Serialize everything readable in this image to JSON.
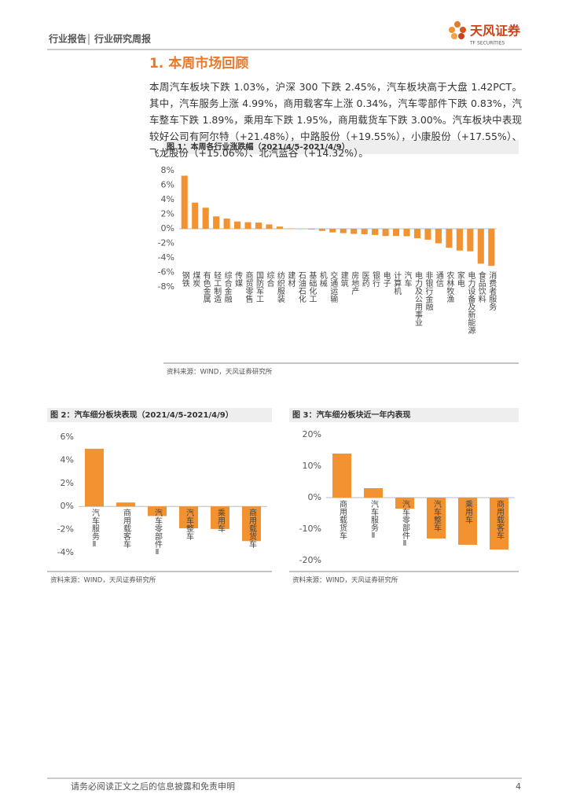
{
  "header": {
    "report_type": "行业报告",
    "report_series": "行业研究周报",
    "brand": "天风证券",
    "brand_en": "TF SECURITIES"
  },
  "section_title": "1. 本周市场回顾",
  "paragraph": "本周汽车板块下跌 1.03%，沪深 300 下跌 2.45%，汽车板块高于大盘 1.42PCT。其中，汽车服务上涨 4.99%，商用载客车上涨 0.34%，汽车零部件下跌 0.83%，汽车整车下跌 1.89%，乘用车下跌 1.95%，商用载货车下跌 3.00%。汽车板块中表现较好公司有阿尔特（+21.48%），中路股份（+19.55%），小康股份（+17.55%）、飞龙股份（+15.06%）、北汽蓝谷（+14.32%）。",
  "chart_data": [
    {
      "type": "bar",
      "title": "图 1：本周各行业涨跌幅（2021/4/5-2021/4/9）",
      "source": "资料来源：WIND，天风证券研究所",
      "categories": [
        "钢铁",
        "煤炭",
        "有色金属",
        "轻工制造",
        "综合金融",
        "传媒",
        "商贸零售",
        "国防军工",
        "综合",
        "纺织服装",
        "建材",
        "石油石化",
        "基础化工",
        "机械",
        "交通运输",
        "建筑",
        "房地产",
        "医药",
        "银行",
        "电子",
        "计算机",
        "汽车",
        "电力及公用事业",
        "非银行金融",
        "通信",
        "农林牧渔",
        "家电",
        "电力设备及新能源",
        "食品饮料",
        "消费者服务"
      ],
      "values": [
        7.3,
        3.6,
        2.9,
        1.7,
        1.4,
        1.0,
        0.9,
        0.85,
        0.6,
        0.3,
        0.05,
        -0.05,
        -0.1,
        -0.3,
        -0.5,
        -0.6,
        -0.7,
        -0.75,
        -0.85,
        -1.0,
        -1.0,
        -1.03,
        -1.3,
        -1.5,
        -2.0,
        -2.6,
        -3.0,
        -3.1,
        -4.8,
        -5.1
      ],
      "color": "#f39230",
      "ylim": [
        -8,
        8
      ],
      "yticks": [
        {
          "value": -8,
          "label": "-8%"
        },
        {
          "value": -6,
          "label": "-6%"
        },
        {
          "value": -4,
          "label": "-4%"
        },
        {
          "value": -2,
          "label": "-2%"
        },
        {
          "value": 0,
          "label": "0%"
        },
        {
          "value": 2,
          "label": "2%"
        },
        {
          "value": 4,
          "label": "4%"
        },
        {
          "value": 6,
          "label": "6%"
        },
        {
          "value": 8,
          "label": "8%"
        }
      ]
    },
    {
      "type": "bar",
      "title": "图 2：汽车细分板块表现（2021/4/5-2021/4/9）",
      "source": "资料来源：WIND，天风证券研究所",
      "categories": [
        "汽车服务Ⅱ",
        "商用载客车",
        "汽车零部件Ⅱ",
        "汽车整车",
        "乘用车",
        "商用载货车"
      ],
      "values": [
        4.99,
        0.34,
        -0.83,
        -1.89,
        -1.95,
        -3.0
      ],
      "color": "#f39230",
      "ylim": [
        -4,
        6
      ],
      "yticks": [
        {
          "value": -4,
          "label": "-4%"
        },
        {
          "value": -2,
          "label": "-2%"
        },
        {
          "value": 0,
          "label": "0%"
        },
        {
          "value": 2,
          "label": "2%"
        },
        {
          "value": 4,
          "label": "4%"
        },
        {
          "value": 6,
          "label": "6%"
        }
      ]
    },
    {
      "type": "bar",
      "title": "图 3：汽车细分板块近一年内表现",
      "source": "资料来源：WIND，天风证券研究所",
      "categories": [
        "商用载货车",
        "汽车服务Ⅱ",
        "汽车零部件Ⅱ",
        "汽车整车",
        "乘用车",
        "商用载客车"
      ],
      "values": [
        14,
        3,
        -3.5,
        -13,
        -15,
        -16.5
      ],
      "color": "#f39230",
      "ylim": [
        -20,
        20
      ],
      "yticks": [
        {
          "value": -20,
          "label": "-20%"
        },
        {
          "value": -10,
          "label": "-10%"
        },
        {
          "value": 0,
          "label": "0%"
        },
        {
          "value": 10,
          "label": "10%"
        },
        {
          "value": 20,
          "label": "20%"
        }
      ]
    }
  ],
  "footer": {
    "disclaimer": "请务必阅读正文之后的信息披露和免责申明",
    "page": "4"
  }
}
